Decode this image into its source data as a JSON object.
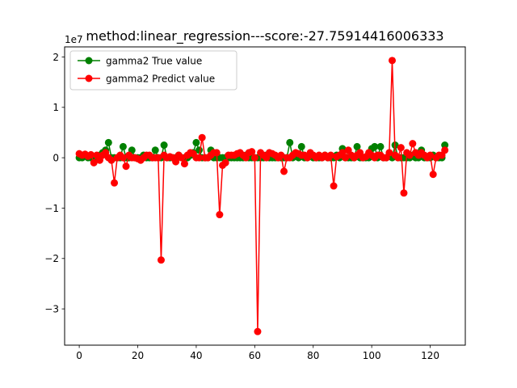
{
  "chart_data": {
    "type": "line",
    "title": "method:linear_regression---score:-27.75914416006333",
    "y_offset_label": "1e7",
    "xlim": [
      -5,
      132
    ],
    "ylim": [
      -3.72,
      2.2
    ],
    "xticks": [
      0,
      20,
      40,
      60,
      80,
      100,
      120
    ],
    "yticks": [
      -3,
      -2,
      -1,
      0,
      1,
      2
    ],
    "ytick_labels": [
      "−3",
      "−2",
      "−1",
      "0",
      "1",
      "2"
    ],
    "legend_position": "upper-left",
    "series": [
      {
        "name": "gamma2 True value",
        "color": "#008000",
        "x": [
          0,
          1,
          2,
          3,
          4,
          5,
          6,
          7,
          8,
          9,
          10,
          11,
          12,
          13,
          14,
          15,
          16,
          17,
          18,
          19,
          20,
          21,
          22,
          23,
          24,
          25,
          26,
          27,
          28,
          29,
          30,
          31,
          32,
          33,
          34,
          35,
          36,
          37,
          38,
          39,
          40,
          41,
          42,
          43,
          44,
          45,
          46,
          47,
          48,
          49,
          50,
          51,
          52,
          53,
          54,
          55,
          56,
          57,
          58,
          59,
          60,
          61,
          62,
          63,
          64,
          65,
          66,
          67,
          68,
          69,
          70,
          71,
          72,
          73,
          74,
          75,
          76,
          77,
          78,
          79,
          80,
          81,
          82,
          83,
          84,
          85,
          86,
          87,
          88,
          89,
          90,
          91,
          92,
          93,
          94,
          95,
          96,
          97,
          98,
          99,
          100,
          101,
          102,
          103,
          104,
          105,
          106,
          107,
          108,
          109,
          110,
          111,
          112,
          113,
          114,
          115,
          116,
          117,
          118,
          119,
          120,
          121,
          122,
          123,
          124,
          125
        ],
        "y": [
          0.0,
          0.0,
          0.05,
          0.0,
          0.0,
          0.0,
          0.0,
          0.05,
          0.1,
          0.15,
          0.3,
          0.0,
          0.0,
          0.0,
          0.0,
          0.22,
          0.0,
          0.0,
          0.15,
          0.0,
          0.0,
          0.0,
          0.05,
          0.0,
          0.0,
          0.0,
          0.15,
          0.0,
          0.0,
          0.25,
          0.0,
          0.0,
          0.0,
          0.0,
          0.05,
          0.0,
          0.0,
          0.0,
          0.05,
          0.1,
          0.3,
          0.15,
          0.0,
          0.0,
          0.0,
          0.15,
          0.0,
          0.0,
          0.0,
          0.0,
          0.0,
          0.0,
          0.0,
          0.0,
          0.0,
          0.0,
          0.0,
          0.05,
          0.0,
          0.0,
          0.0,
          0.0,
          0.0,
          0.0,
          0.05,
          0.0,
          0.0,
          0.0,
          0.0,
          0.0,
          0.0,
          0.0,
          0.3,
          0.0,
          0.05,
          0.0,
          0.22,
          0.0,
          0.0,
          0.05,
          0.0,
          0.0,
          0.0,
          0.0,
          0.05,
          0.0,
          0.0,
          0.0,
          0.05,
          0.0,
          0.18,
          0.0,
          0.0,
          0.0,
          0.0,
          0.22,
          0.0,
          0.0,
          0.0,
          0.0,
          0.18,
          0.22,
          0.0,
          0.22,
          0.0,
          0.0,
          0.05,
          0.0,
          0.25,
          0.0,
          0.0,
          0.0,
          0.0,
          0.0,
          0.05,
          0.0,
          0.0,
          0.15,
          0.0,
          0.0,
          0.0,
          0.05,
          0.0,
          0.0,
          0.0,
          0.25
        ]
      },
      {
        "name": "gamma2 Predict value",
        "color": "#ff0000",
        "x": [
          0,
          1,
          2,
          3,
          4,
          5,
          6,
          7,
          8,
          9,
          10,
          11,
          12,
          13,
          14,
          15,
          16,
          17,
          18,
          19,
          20,
          21,
          22,
          23,
          24,
          25,
          26,
          27,
          28,
          29,
          30,
          31,
          32,
          33,
          34,
          35,
          36,
          37,
          38,
          39,
          40,
          41,
          42,
          43,
          44,
          45,
          46,
          47,
          48,
          49,
          50,
          51,
          52,
          53,
          54,
          55,
          56,
          57,
          58,
          59,
          60,
          61,
          62,
          63,
          64,
          65,
          66,
          67,
          68,
          69,
          70,
          71,
          72,
          73,
          74,
          75,
          76,
          77,
          78,
          79,
          80,
          81,
          82,
          83,
          84,
          85,
          86,
          87,
          88,
          89,
          90,
          91,
          92,
          93,
          94,
          95,
          96,
          97,
          98,
          99,
          100,
          101,
          102,
          103,
          104,
          105,
          106,
          107,
          108,
          109,
          110,
          111,
          112,
          113,
          114,
          115,
          116,
          117,
          118,
          119,
          120,
          121,
          122,
          123,
          124,
          125
        ],
        "y": [
          0.08,
          0.05,
          0.07,
          0.03,
          0.06,
          -0.1,
          0.05,
          -0.05,
          0.05,
          0.1,
          0.0,
          -0.05,
          -0.5,
          0.0,
          0.05,
          0.0,
          -0.17,
          0.05,
          0.0,
          0.0,
          -0.02,
          -0.05,
          0.0,
          0.05,
          0.05,
          0.0,
          0.0,
          0.0,
          -2.03,
          0.05,
          0.0,
          0.02,
          0.0,
          -0.08,
          0.05,
          0.0,
          -0.12,
          0.05,
          0.1,
          0.08,
          0.0,
          0.0,
          0.4,
          0.0,
          0.0,
          0.05,
          0.1,
          0.1,
          -1.13,
          -0.15,
          -0.1,
          0.05,
          0.05,
          0.05,
          0.08,
          0.1,
          0.05,
          0.0,
          0.1,
          0.12,
          0.0,
          -3.45,
          0.1,
          0.05,
          0.0,
          0.1,
          0.08,
          0.05,
          0.0,
          0.05,
          -0.27,
          0.0,
          0.0,
          0.05,
          0.1,
          0.08,
          0.05,
          0.05,
          0.0,
          0.1,
          0.05,
          0.0,
          0.05,
          0.0,
          0.05,
          0.0,
          0.05,
          -0.56,
          0.02,
          0.05,
          0.1,
          0.0,
          0.15,
          0.05,
          0.0,
          0.05,
          0.1,
          0.0,
          0.02,
          0.1,
          0.05,
          0.0,
          0.05,
          0.05,
          0.0,
          0.0,
          0.1,
          1.93,
          0.05,
          0.0,
          0.2,
          -0.7,
          0.1,
          0.05,
          0.28,
          0.1,
          0.05,
          0.1,
          0.05,
          0.0,
          0.05,
          -0.33,
          0.0,
          0.05,
          0.05,
          0.15
        ]
      }
    ]
  }
}
